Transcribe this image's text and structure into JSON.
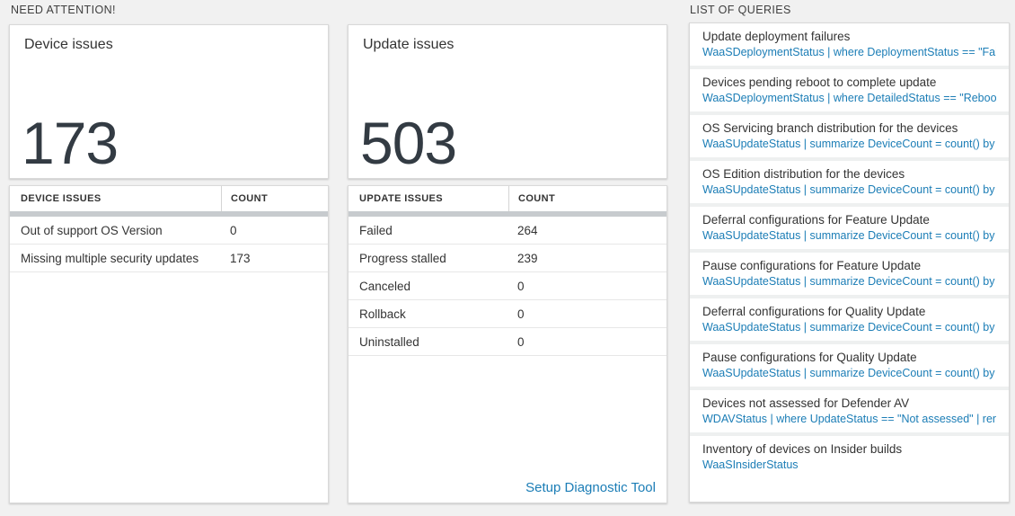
{
  "sections": {
    "need_attention": "NEED ATTENTION!",
    "list_of_queries": "LIST OF QUERIES"
  },
  "device_card": {
    "title": "Device issues",
    "count": "173"
  },
  "device_table": {
    "headers": {
      "issue": "DEVICE ISSUES",
      "count": "COUNT"
    },
    "rows": [
      {
        "label": "Out of support OS Version",
        "count": "0"
      },
      {
        "label": "Missing multiple security updates",
        "count": "173"
      }
    ]
  },
  "update_card": {
    "title": "Update issues",
    "count": "503"
  },
  "update_table": {
    "headers": {
      "issue": "UPDATE ISSUES",
      "count": "COUNT"
    },
    "rows": [
      {
        "label": "Failed",
        "count": "264"
      },
      {
        "label": "Progress stalled",
        "count": "239"
      },
      {
        "label": "Canceled",
        "count": "0"
      },
      {
        "label": "Rollback",
        "count": "0"
      },
      {
        "label": "Uninstalled",
        "count": "0"
      }
    ],
    "footer_link": "Setup Diagnostic Tool"
  },
  "queries": {
    "items": [
      {
        "title": "Update deployment failures",
        "query": "WaaSDeploymentStatus | where DeploymentStatus == \"Failed\" |..."
      },
      {
        "title": "Devices pending reboot to complete update",
        "query": "WaaSDeploymentStatus | where DetailedStatus == \"Reboot pend..."
      },
      {
        "title": "OS Servicing branch distribution for the devices",
        "query": "WaaSUpdateStatus | summarize DeviceCount = count() by OSSer..."
      },
      {
        "title": "OS Edition distribution for the devices",
        "query": "WaaSUpdateStatus | summarize DeviceCount = count() by OSEdit..."
      },
      {
        "title": "Deferral configurations for Feature Update",
        "query": "WaaSUpdateStatus | summarize DeviceCount = count() by Featur..."
      },
      {
        "title": "Pause configurations for Feature Update",
        "query": "WaaSUpdateStatus | summarize DeviceCount = count() by Featur..."
      },
      {
        "title": "Deferral configurations for Quality Update",
        "query": "WaaSUpdateStatus | summarize DeviceCount = count() by Qualit..."
      },
      {
        "title": "Pause configurations for Quality Update",
        "query": "WaaSUpdateStatus | summarize DeviceCount = count() by Qualit..."
      },
      {
        "title": "Devices not assessed for Defender AV",
        "query": "WDAVStatus | where UpdateStatus == \"Not assessed\" | render ta..."
      },
      {
        "title": "Inventory of devices on Insider builds",
        "query": "WaaSInsiderStatus"
      }
    ]
  },
  "colors": {
    "accent_blue": "#1b7db6",
    "header_band_gray": "#c7cbce",
    "page_background": "#f1f1f1",
    "big_number_color": "#333b43"
  }
}
